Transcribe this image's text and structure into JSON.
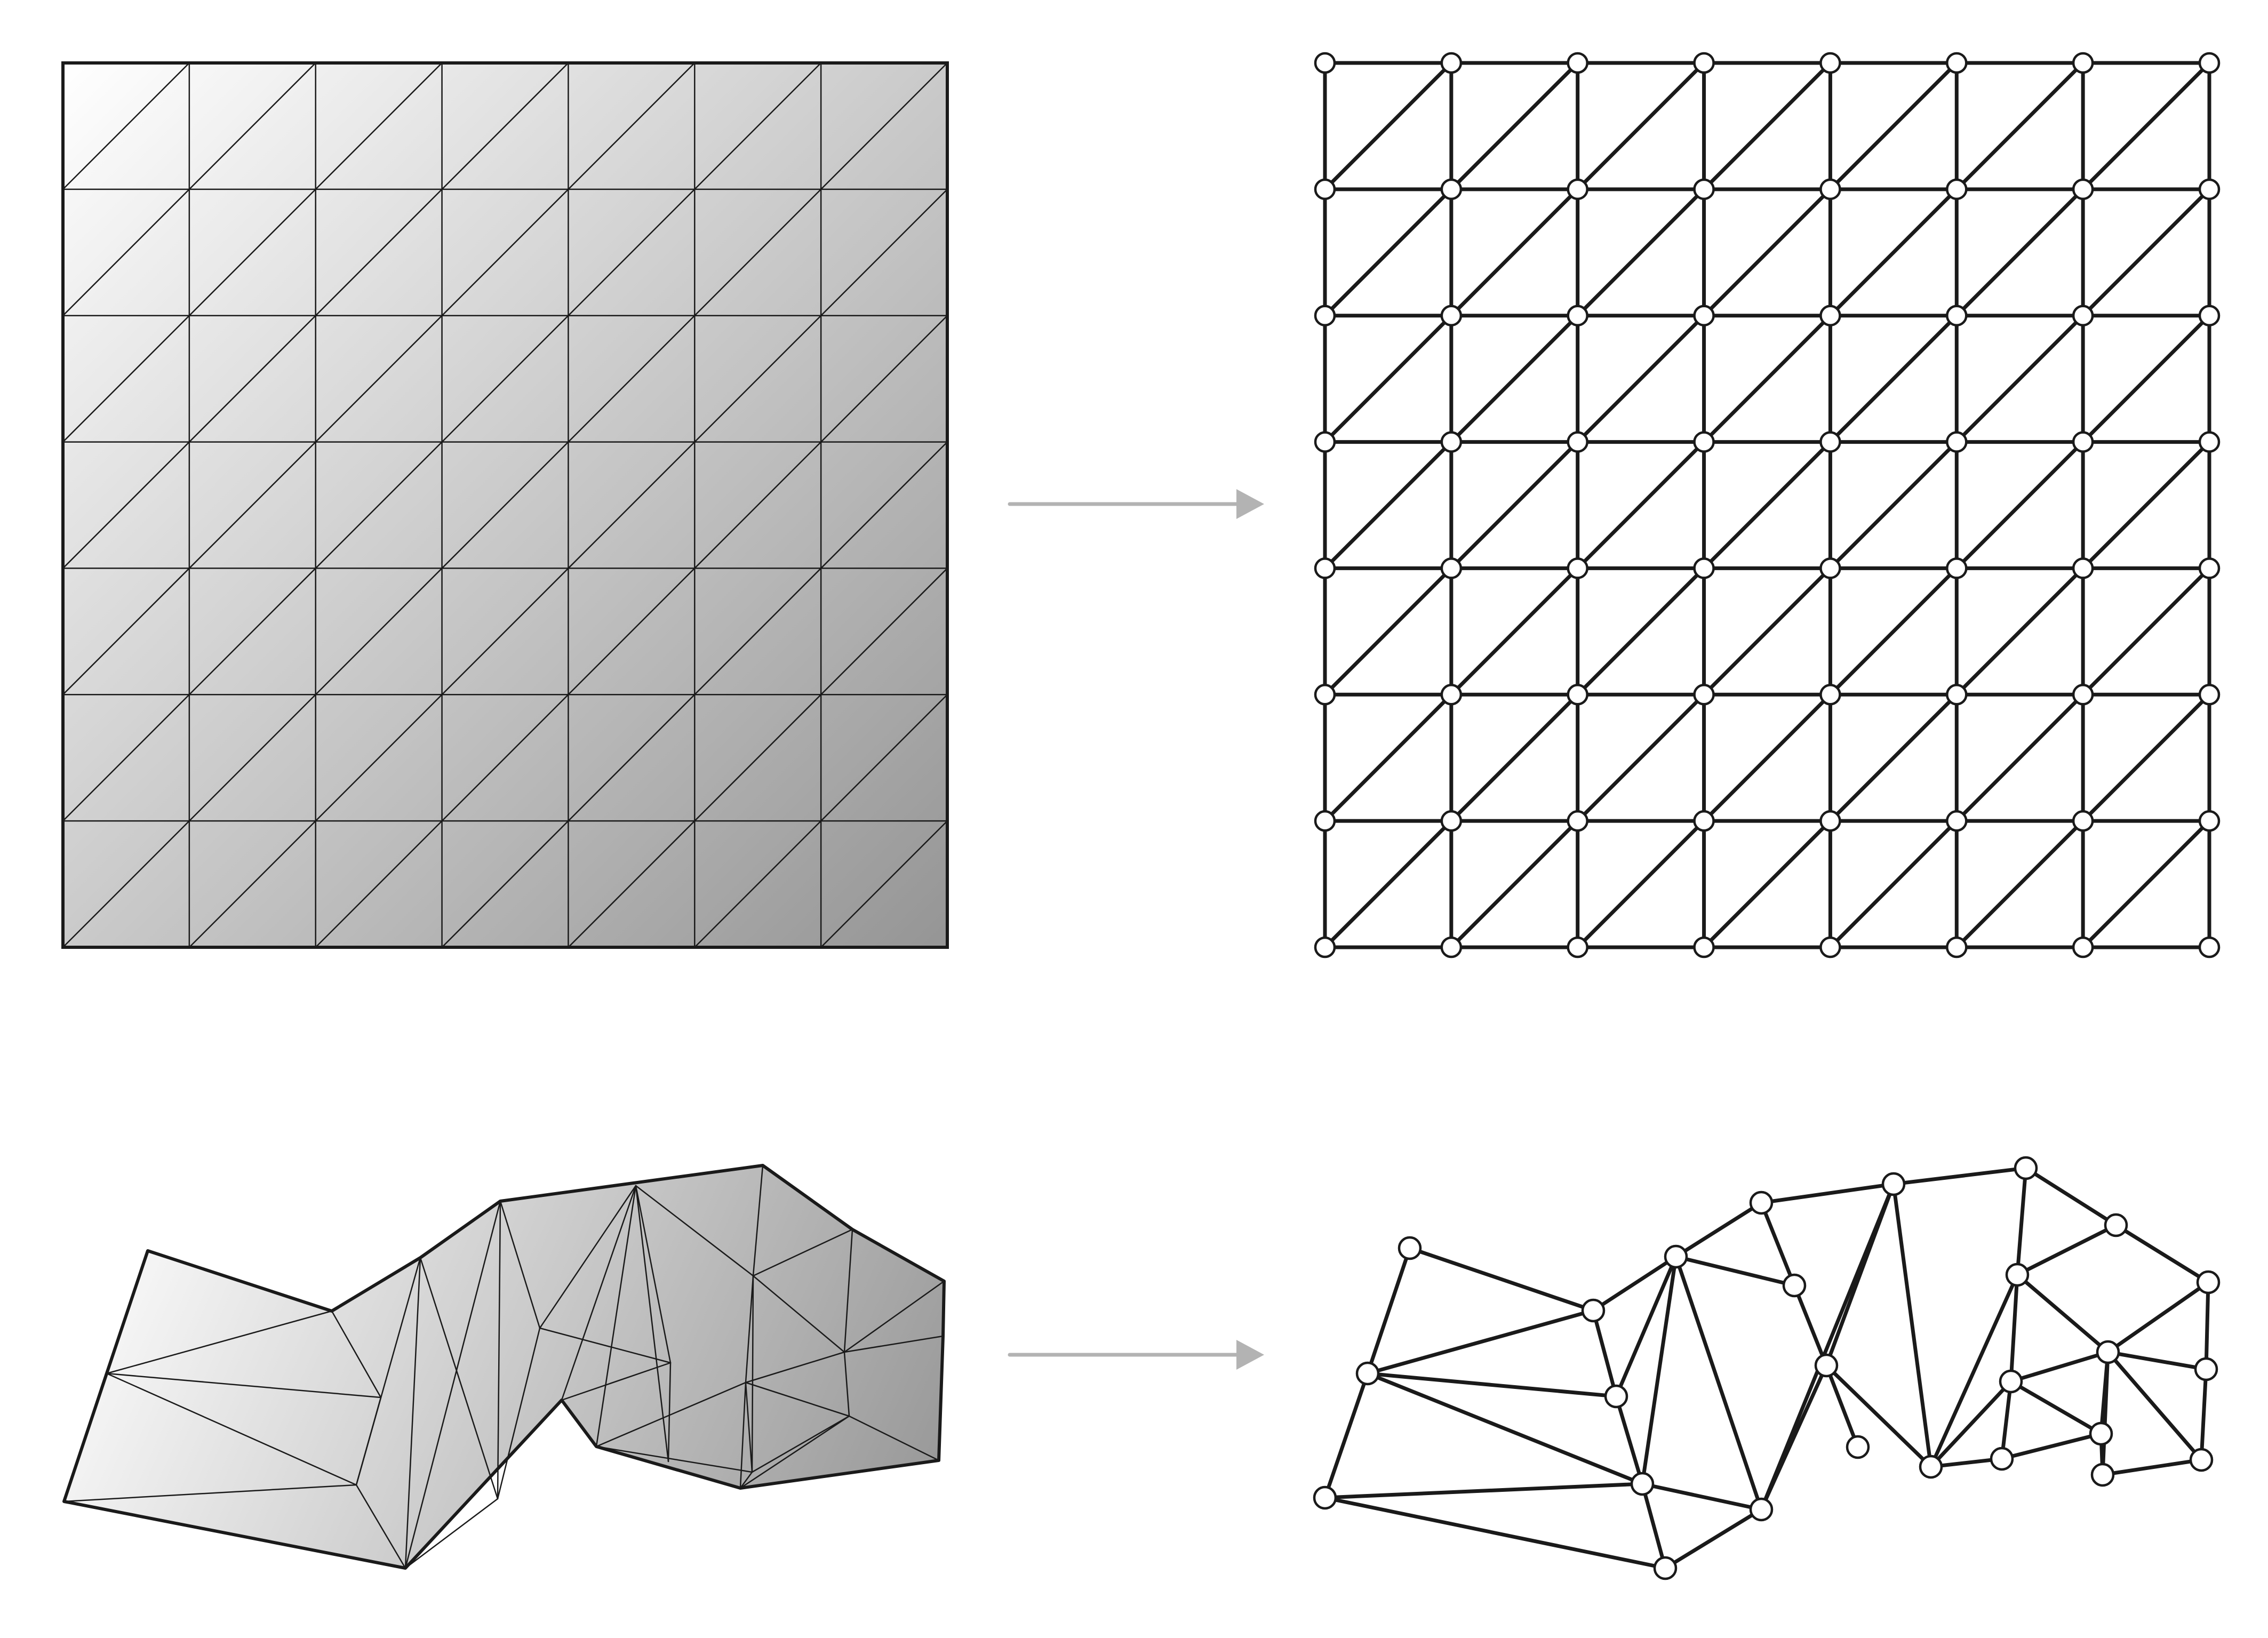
{
  "figure": {
    "colors": {
      "background": "#ffffff",
      "stroke": "#1a1a1a",
      "node_fill": "#ffffff",
      "arrow": "#b3b3b3",
      "gradient_light": "#ffffff",
      "gradient_dark": "#959595"
    },
    "panels": [
      {
        "id": "grid-mesh",
        "kind": "shaded-triangle-mesh",
        "grid_cells": 7
      },
      {
        "id": "grid-graph",
        "kind": "node-edge-graph",
        "grid_cells": 7
      },
      {
        "id": "irregular-mesh",
        "kind": "shaded-triangle-mesh"
      },
      {
        "id": "irregular-graph",
        "kind": "node-edge-graph"
      }
    ],
    "arrows": [
      {
        "id": "arrow-top",
        "direction": "right"
      },
      {
        "id": "arrow-bottom",
        "direction": "right"
      }
    ]
  }
}
